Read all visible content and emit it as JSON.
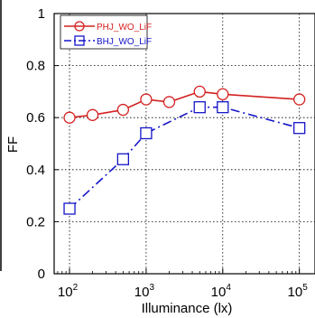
{
  "chart_data": {
    "type": "line",
    "xscale": "log",
    "xlabel": "Illuminance (lx)",
    "ylabel": "FF",
    "xlim": [
      63,
      160000
    ],
    "ylim": [
      0,
      1
    ],
    "yticks": [
      "0",
      "0.2",
      "0.4",
      "0.6",
      "0.8",
      "1"
    ],
    "xticks": [
      {
        "value": 100,
        "base": "10",
        "exp": "2"
      },
      {
        "value": 1000,
        "base": "10",
        "exp": "3"
      },
      {
        "value": 10000,
        "base": "10",
        "exp": "4"
      },
      {
        "value": 100000,
        "base": "10",
        "exp": "5"
      }
    ],
    "grid": true,
    "legend_position": "top-left",
    "series": [
      {
        "name": "PHJ_WO_LiF",
        "color": "#d42020",
        "marker": "circle",
        "line": "solid",
        "x": [
          100,
          200,
          500,
          1000,
          2000,
          5000,
          10000,
          100000
        ],
        "y": [
          0.6,
          0.61,
          0.63,
          0.67,
          0.66,
          0.7,
          0.69,
          0.67
        ]
      },
      {
        "name": "BHJ_WO_LiF",
        "color": "#1515c8",
        "marker": "square",
        "line": "dashdot",
        "x": [
          100,
          500,
          1000,
          5000,
          10000,
          100000
        ],
        "y": [
          0.25,
          0.44,
          0.54,
          0.64,
          0.64,
          0.56
        ]
      }
    ]
  }
}
